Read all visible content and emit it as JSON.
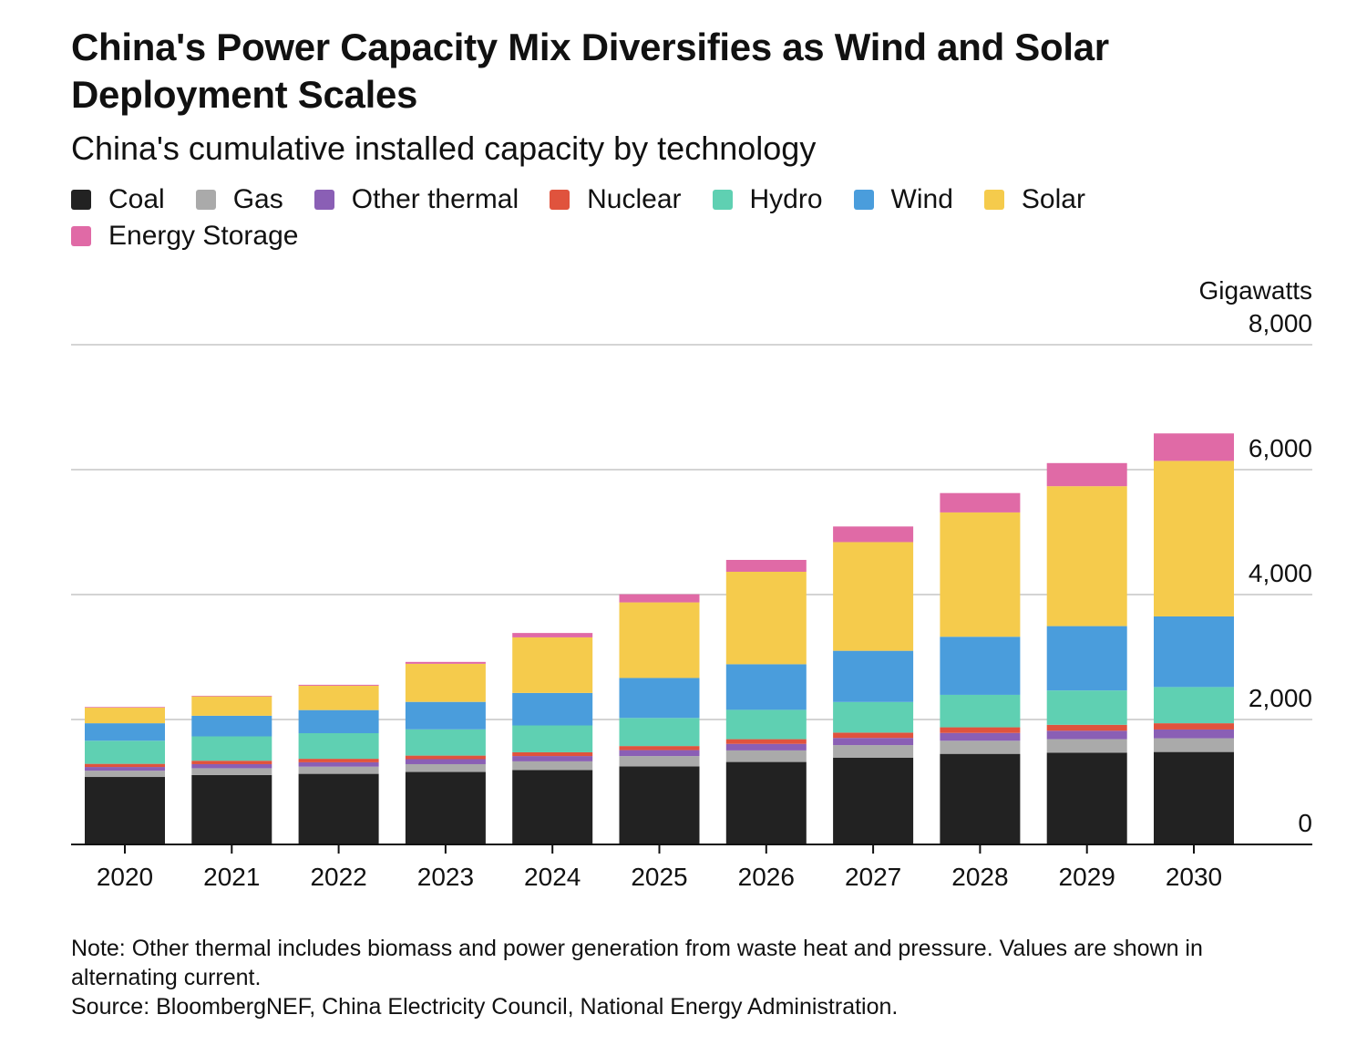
{
  "title": "China's Power Capacity Mix Diversifies as Wind and Solar Deployment Scales",
  "subtitle": "China's cumulative installed capacity by technology",
  "legend": [
    {
      "label": "Coal",
      "color": "#222222"
    },
    {
      "label": "Gas",
      "color": "#aaaaaa"
    },
    {
      "label": "Other thermal",
      "color": "#8a5fb5"
    },
    {
      "label": "Nuclear",
      "color": "#e0533d"
    },
    {
      "label": "Hydro",
      "color": "#5fd0b2"
    },
    {
      "label": "Wind",
      "color": "#4a9ddc"
    },
    {
      "label": "Solar",
      "color": "#f5cb4c"
    },
    {
      "label": "Energy Storage",
      "color": "#e06aa6"
    }
  ],
  "unit_label": "Gigawatts",
  "note": "Note: Other thermal includes biomass and power generation from waste heat and pressure. Values are shown in alternating current.",
  "source": "Source: BloombergNEF, China Electricity Council, National Energy Administration.",
  "chart_data": {
    "type": "bar",
    "stacked": true,
    "title": "China's Power Capacity Mix Diversifies as Wind and Solar Deployment Scales",
    "subtitle": "China's cumulative installed capacity by technology",
    "ylabel": "Gigawatts",
    "ylim": [
      0,
      8000
    ],
    "yticks": [
      0,
      2000,
      4000,
      6000,
      8000
    ],
    "ytick_labels": [
      "0",
      "2,000",
      "4,000",
      "6,000",
      "8,000"
    ],
    "y_axis_position": "right",
    "grid": true,
    "legend_position": "top",
    "categories": [
      "2020",
      "2021",
      "2022",
      "2023",
      "2024",
      "2025",
      "2026",
      "2027",
      "2028",
      "2029",
      "2030"
    ],
    "series": [
      {
        "name": "Coal",
        "color": "#222222",
        "values": [
          1080,
          1110,
          1130,
          1160,
          1190,
          1250,
          1320,
          1390,
          1450,
          1470,
          1480
        ]
      },
      {
        "name": "Gas",
        "color": "#aaaaaa",
        "values": [
          100,
          110,
          115,
          125,
          140,
          165,
          185,
          200,
          210,
          215,
          220
        ]
      },
      {
        "name": "Other thermal",
        "color": "#8a5fb5",
        "values": [
          60,
          65,
          70,
          80,
          85,
          95,
          105,
          115,
          125,
          135,
          140
        ]
      },
      {
        "name": "Nuclear",
        "color": "#e0533d",
        "values": [
          50,
          55,
          56,
          57,
          60,
          65,
          75,
          85,
          90,
          95,
          100
        ]
      },
      {
        "name": "Hydro",
        "color": "#5fd0b2",
        "values": [
          370,
          390,
          410,
          420,
          430,
          450,
          470,
          490,
          520,
          550,
          580
        ]
      },
      {
        "name": "Wind",
        "color": "#4a9ddc",
        "values": [
          280,
          330,
          370,
          440,
          520,
          640,
          730,
          820,
          930,
          1030,
          1130
        ]
      },
      {
        "name": "Solar",
        "color": "#f5cb4c",
        "values": [
          250,
          310,
          390,
          610,
          890,
          1210,
          1480,
          1740,
          1990,
          2240,
          2490
        ]
      },
      {
        "name": "Energy Storage",
        "color": "#e06aa6",
        "values": [
          10,
          10,
          15,
          30,
          70,
          130,
          190,
          250,
          310,
          370,
          440
        ]
      }
    ]
  }
}
